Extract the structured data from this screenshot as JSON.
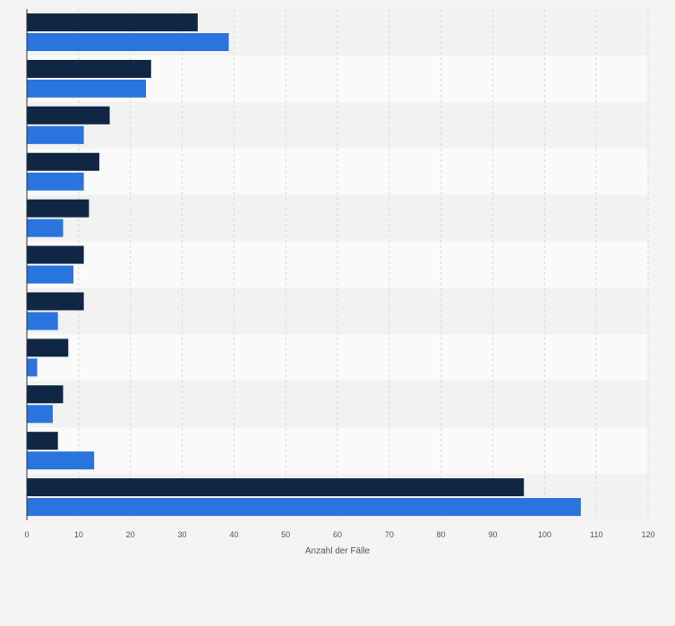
{
  "chart_data": {
    "type": "bar",
    "orientation": "horizontal",
    "categories": [
      "",
      "",
      "",
      "",
      "",
      "",
      "",
      "",
      "",
      "",
      ""
    ],
    "series": [
      {
        "color": "#0f2744",
        "values": [
          33,
          24,
          16,
          14,
          12,
          11,
          11,
          8,
          7,
          6,
          96
        ]
      },
      {
        "color": "#2a74de",
        "values": [
          39,
          23,
          11,
          11,
          7,
          9,
          6,
          2,
          5,
          13,
          107
        ]
      }
    ],
    "x_ticks": [
      "0",
      "10",
      "20",
      "30",
      "40",
      "50",
      "60",
      "70",
      "80",
      "90",
      "100",
      "110",
      "120"
    ],
    "xlim": [
      0,
      120
    ],
    "xlabel": "Anzahl der Fälle",
    "ylabel": "",
    "grid": true,
    "legend": "none"
  }
}
